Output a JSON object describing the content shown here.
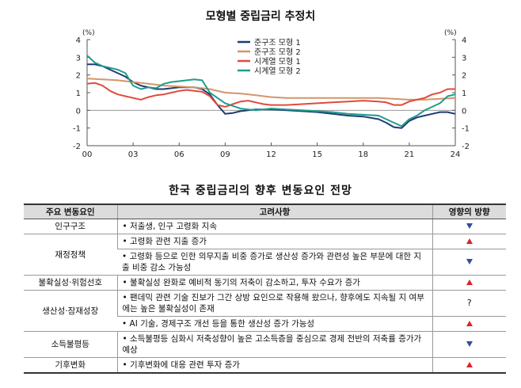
{
  "chart_data": {
    "type": "line",
    "title": "모형별 중립금리 추정치",
    "unit_left": "(%)",
    "unit_right": "(%)",
    "ylim": [
      -2,
      4
    ],
    "yticks": [
      -2,
      -1,
      0,
      1,
      2,
      3,
      4
    ],
    "xlim": [
      2000,
      2024
    ],
    "xticks": [
      2000,
      2003,
      2006,
      2009,
      2012,
      2015,
      2018,
      2021,
      2024
    ],
    "xtick_labels": [
      "00",
      "03",
      "06",
      "09",
      "12",
      "15",
      "18",
      "21",
      "24"
    ],
    "legend_position": "top-center",
    "series": [
      {
        "name": "준구조 모형 1",
        "color": "#1f3b73",
        "x": [
          2000,
          2000.5,
          2001,
          2001.5,
          2002,
          2002.5,
          2003,
          2003.5,
          2004,
          2004.5,
          2005,
          2005.5,
          2006,
          2006.5,
          2007,
          2007.5,
          2008,
          2008.5,
          2009,
          2009.5,
          2010,
          2010.5,
          2011,
          2012,
          2013,
          2014,
          2015,
          2016,
          2017,
          2018,
          2019,
          2019.5,
          2020,
          2020.5,
          2021,
          2021.5,
          2022,
          2022.5,
          2023,
          2023.5,
          2024
        ],
        "values": [
          2.6,
          2.6,
          2.5,
          2.3,
          2.1,
          1.9,
          1.6,
          1.4,
          1.3,
          1.2,
          1.2,
          1.25,
          1.3,
          1.3,
          1.3,
          1.2,
          0.9,
          0.3,
          -0.2,
          -0.15,
          -0.05,
          0.0,
          0.05,
          0.05,
          0.0,
          -0.05,
          -0.1,
          -0.2,
          -0.3,
          -0.35,
          -0.5,
          -0.7,
          -0.95,
          -1.0,
          -0.6,
          -0.4,
          -0.3,
          -0.2,
          -0.1,
          -0.1,
          -0.2
        ]
      },
      {
        "name": "준구조 모형 2",
        "color": "#d4956b",
        "x": [
          2000,
          2001,
          2002,
          2003,
          2004,
          2005,
          2006,
          2007,
          2008,
          2009,
          2010,
          2011,
          2012,
          2013,
          2014,
          2015,
          2016,
          2017,
          2018,
          2019,
          2020,
          2021,
          2022,
          2023,
          2024
        ],
        "values": [
          1.8,
          1.75,
          1.7,
          1.6,
          1.5,
          1.4,
          1.35,
          1.3,
          1.2,
          1.0,
          0.95,
          0.85,
          0.75,
          0.7,
          0.7,
          0.7,
          0.7,
          0.7,
          0.7,
          0.7,
          0.65,
          0.6,
          0.6,
          0.65,
          0.7
        ]
      },
      {
        "name": "시계열 모형 1",
        "color": "#e04b3a",
        "x": [
          2000,
          2000.5,
          2001,
          2001.5,
          2002,
          2002.5,
          2003,
          2003.5,
          2004,
          2004.5,
          2005,
          2005.5,
          2006,
          2006.5,
          2007,
          2007.5,
          2008,
          2008.5,
          2009,
          2009.5,
          2010,
          2010.5,
          2011,
          2011.5,
          2012,
          2013,
          2014,
          2015,
          2016,
          2017,
          2018,
          2019,
          2019.5,
          2020,
          2020.5,
          2021,
          2021.5,
          2022,
          2022.5,
          2023,
          2023.5,
          2024
        ],
        "values": [
          1.5,
          1.55,
          1.4,
          1.1,
          0.9,
          0.8,
          0.7,
          0.6,
          0.75,
          0.85,
          0.9,
          1.0,
          1.1,
          1.15,
          1.1,
          1.05,
          0.8,
          0.3,
          0.2,
          0.35,
          0.5,
          0.55,
          0.45,
          0.35,
          0.3,
          0.3,
          0.35,
          0.4,
          0.45,
          0.5,
          0.55,
          0.5,
          0.45,
          0.3,
          0.3,
          0.5,
          0.6,
          0.7,
          0.9,
          1.0,
          1.2,
          1.2
        ]
      },
      {
        "name": "시계열 모형 2",
        "color": "#1f9c8a",
        "x": [
          2000,
          2000.5,
          2001,
          2001.5,
          2002,
          2002.5,
          2003,
          2003.5,
          2004,
          2004.5,
          2005,
          2005.5,
          2006,
          2006.5,
          2007,
          2007.5,
          2008,
          2008.5,
          2009,
          2009.5,
          2010,
          2010.5,
          2011,
          2012,
          2013,
          2014,
          2015,
          2016,
          2017,
          2018,
          2019,
          2019.5,
          2020,
          2020.5,
          2021,
          2021.5,
          2022,
          2022.5,
          2023,
          2023.5,
          2024
        ],
        "values": [
          3.1,
          2.7,
          2.5,
          2.4,
          2.3,
          2.1,
          1.4,
          1.2,
          1.3,
          1.25,
          1.5,
          1.6,
          1.65,
          1.7,
          1.75,
          1.7,
          1.0,
          0.7,
          0.4,
          0.25,
          0.1,
          0.05,
          0.0,
          0.1,
          0.05,
          0.0,
          -0.05,
          -0.1,
          -0.2,
          -0.25,
          -0.3,
          -0.5,
          -0.7,
          -0.9,
          -0.5,
          -0.3,
          0.0,
          0.2,
          0.4,
          0.8,
          0.9
        ]
      }
    ]
  },
  "table": {
    "title": "한국 중립금리의 향후 변동요인 전망",
    "headers": [
      "주요 변동요인",
      "고려사항",
      "영향의 방향"
    ],
    "rows": [
      {
        "factor": "인구구조",
        "consideration": "• 저출생, 인구 고령화 지속",
        "impact": "down"
      },
      {
        "factor": "재정정책",
        "consideration": "• 고령화 관련 지출 증가",
        "impact": "up"
      },
      {
        "consideration": "• 고령화 등으로 인한 의무지출 비중 증가로 생산성 증가와 관련성 높은 부문에 대한 지출 비중 감소 가능성",
        "impact": "down"
      },
      {
        "factor": "불확실성·위험선호",
        "consideration": "• 불확실성 완화로 예비적 동기의 저축이 감소하고, 투자 수요가 증가",
        "impact": "up"
      },
      {
        "factor": "생산성·잠재성장",
        "consideration": "• 팬데믹 관련 기술 진보가 그간 상방 요인으로 작용해 왔으나, 향후에도 지속될 지 여부에는 높은 불확실성이 존재",
        "impact": "?"
      },
      {
        "consideration": "• AI 기술, 경제구조 개선 등을 통한 생산성 증가 가능성",
        "impact": "up"
      },
      {
        "factor": "소득불평등",
        "consideration": "• 소득불평등 심화시 저축성향이 높은 고소득층을 중심으로 경제 전반의 저축률 증가가 예상",
        "impact": "down"
      },
      {
        "factor": "기후변화",
        "consideration": "• 기후변화에 대응 관련 투자 증가",
        "impact": "up"
      }
    ]
  }
}
